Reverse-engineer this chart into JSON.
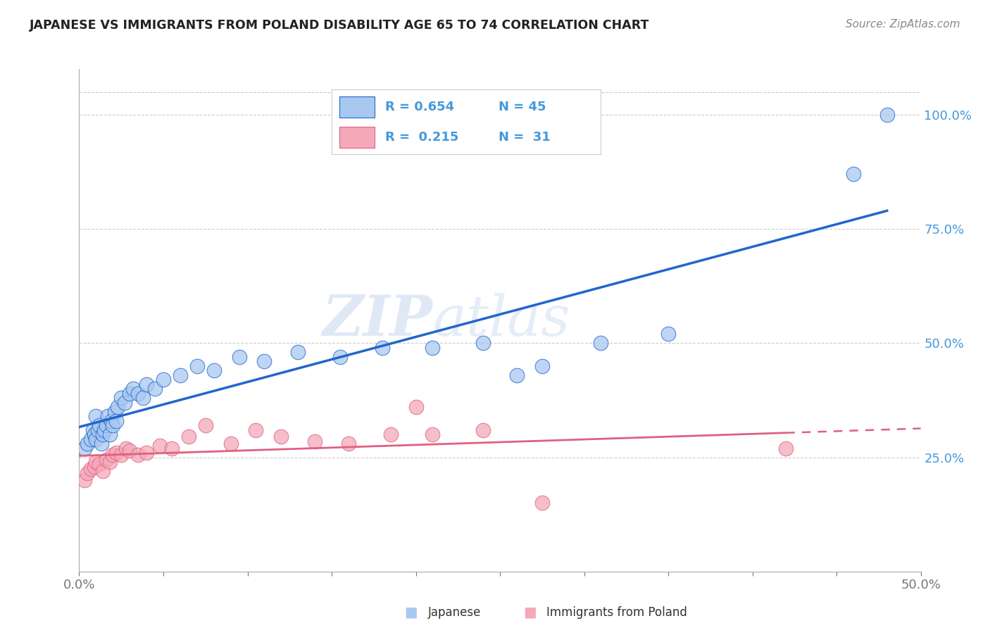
{
  "title": "JAPANESE VS IMMIGRANTS FROM POLAND DISABILITY AGE 65 TO 74 CORRELATION CHART",
  "source": "Source: ZipAtlas.com",
  "ylabel": "Disability Age 65 to 74",
  "xlim": [
    0.0,
    0.5
  ],
  "ylim": [
    0.0,
    1.1
  ],
  "yticks_right": [
    0.25,
    0.5,
    0.75,
    1.0
  ],
  "ytick_right_labels": [
    "25.0%",
    "50.0%",
    "75.0%",
    "100.0%"
  ],
  "blue_R": 0.654,
  "blue_N": 45,
  "pink_R": 0.215,
  "pink_N": 31,
  "blue_color": "#A8C8F0",
  "pink_color": "#F4A8B8",
  "blue_line_color": "#2266CC",
  "pink_line_color": "#E06080",
  "legend_label_blue": "Japanese",
  "legend_label_pink": "Immigrants from Poland",
  "watermark_zip": "ZIP",
  "watermark_atlas": "atlas",
  "background_color": "#FFFFFF",
  "grid_color": "#CCCCCC",
  "blue_x": [
    0.003,
    0.005,
    0.007,
    0.008,
    0.009,
    0.01,
    0.01,
    0.011,
    0.012,
    0.013,
    0.014,
    0.015,
    0.016,
    0.017,
    0.018,
    0.019,
    0.02,
    0.021,
    0.022,
    0.023,
    0.025,
    0.027,
    0.03,
    0.032,
    0.035,
    0.038,
    0.04,
    0.045,
    0.05,
    0.06,
    0.07,
    0.08,
    0.095,
    0.11,
    0.13,
    0.155,
    0.18,
    0.21,
    0.24,
    0.275,
    0.31,
    0.35,
    0.26,
    0.46,
    0.48
  ],
  "blue_y": [
    0.27,
    0.28,
    0.29,
    0.31,
    0.3,
    0.29,
    0.34,
    0.31,
    0.32,
    0.28,
    0.3,
    0.31,
    0.32,
    0.34,
    0.3,
    0.33,
    0.32,
    0.35,
    0.33,
    0.36,
    0.38,
    0.37,
    0.39,
    0.4,
    0.39,
    0.38,
    0.41,
    0.4,
    0.42,
    0.43,
    0.45,
    0.44,
    0.47,
    0.46,
    0.48,
    0.47,
    0.49,
    0.49,
    0.5,
    0.45,
    0.5,
    0.52,
    0.43,
    0.87,
    1.0
  ],
  "pink_x": [
    0.003,
    0.005,
    0.007,
    0.009,
    0.01,
    0.012,
    0.014,
    0.016,
    0.018,
    0.02,
    0.022,
    0.025,
    0.028,
    0.03,
    0.035,
    0.04,
    0.048,
    0.055,
    0.065,
    0.075,
    0.09,
    0.105,
    0.12,
    0.14,
    0.16,
    0.185,
    0.21,
    0.24,
    0.275,
    0.2,
    0.42
  ],
  "pink_y": [
    0.2,
    0.215,
    0.225,
    0.23,
    0.24,
    0.235,
    0.22,
    0.245,
    0.24,
    0.255,
    0.26,
    0.255,
    0.27,
    0.265,
    0.255,
    0.26,
    0.275,
    0.27,
    0.295,
    0.32,
    0.28,
    0.31,
    0.295,
    0.285,
    0.28,
    0.3,
    0.3,
    0.31,
    0.15,
    0.36,
    0.27
  ]
}
